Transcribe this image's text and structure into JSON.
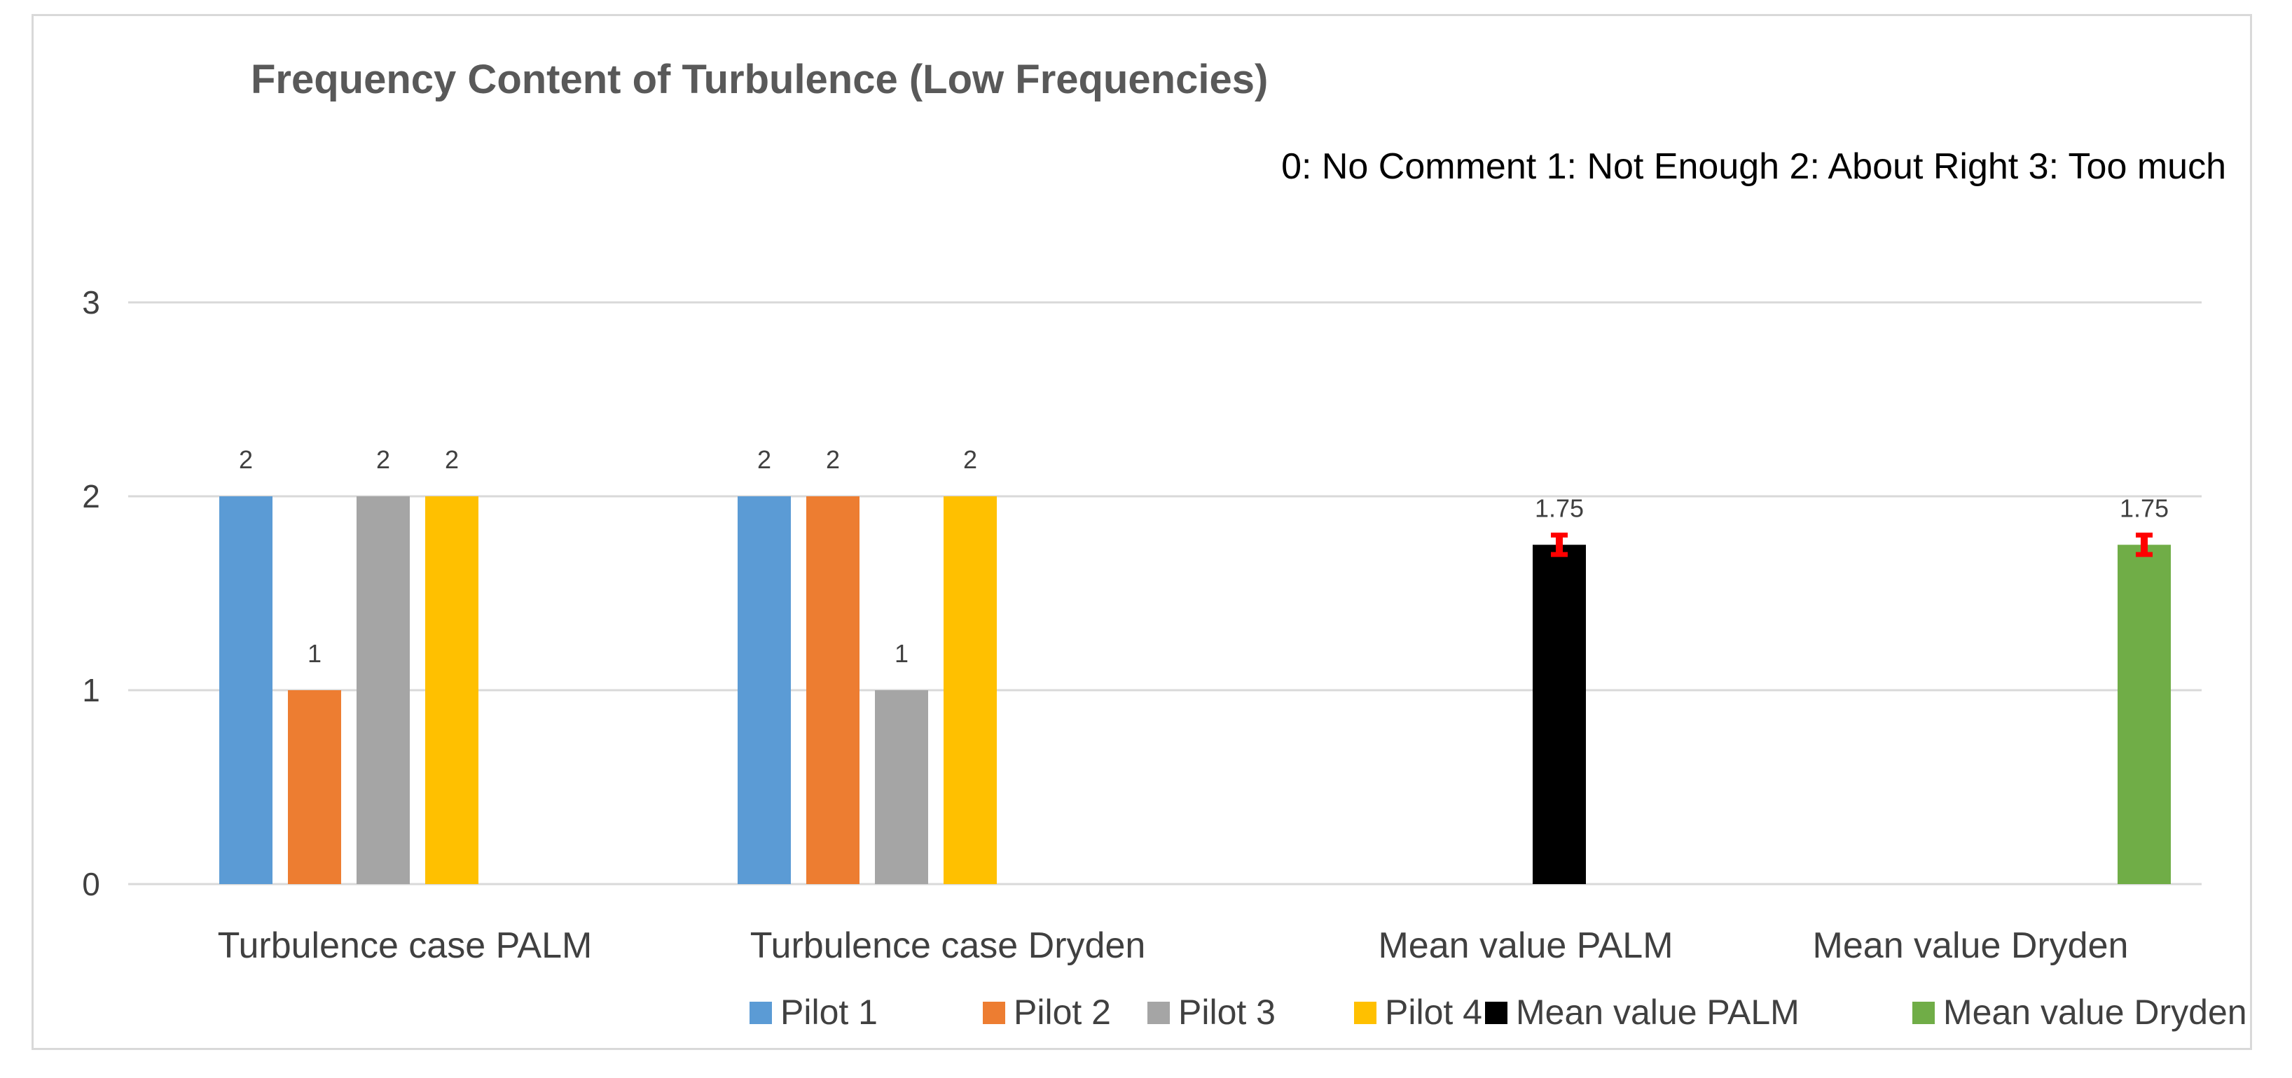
{
  "chart_data": {
    "type": "bar",
    "title": "Frequency Content of Turbulence (Low Frequencies)",
    "subtitle": "0:  No Comment  1: Not Enough 2: About Right 3: Too much",
    "xlabel": "",
    "ylabel": "",
    "ylim": [
      0,
      3
    ],
    "yticks": [
      "0",
      "1",
      "2",
      "3"
    ],
    "grid": true,
    "legend_position": "bottom",
    "categories": [
      "Turbulence case PALM",
      "Turbulence case Dryden",
      "Mean value PALM",
      "Mean value Dryden"
    ],
    "series": [
      {
        "name": "Pilot 1",
        "color": "#5b9bd5",
        "values": [
          2,
          2,
          null,
          null
        ],
        "labels": [
          "2",
          "2",
          "",
          ""
        ]
      },
      {
        "name": "Pilot 2",
        "color": "#ed7d31",
        "values": [
          1,
          2,
          null,
          null
        ],
        "labels": [
          "1",
          "2",
          "",
          ""
        ]
      },
      {
        "name": "Pilot 3",
        "color": "#a5a5a5",
        "values": [
          2,
          1,
          null,
          null
        ],
        "labels": [
          "2",
          "1",
          "",
          ""
        ]
      },
      {
        "name": "Pilot 4",
        "color": "#ffc000",
        "values": [
          2,
          2,
          null,
          null
        ],
        "labels": [
          "2",
          "2",
          "",
          ""
        ]
      },
      {
        "name": "Mean value PALM",
        "color": "#000000",
        "values": [
          null,
          null,
          1.75,
          null
        ],
        "labels": [
          "",
          "",
          "1.75",
          ""
        ],
        "error": [
          null,
          null,
          0.05,
          null
        ]
      },
      {
        "name": "Mean value Dryden",
        "color": "#70ad47",
        "values": [
          null,
          null,
          null,
          1.75
        ],
        "labels": [
          "",
          "",
          "",
          "1.75"
        ],
        "error": [
          null,
          null,
          null,
          0.05
        ]
      }
    ],
    "error_bar_color": "#ff0000"
  }
}
